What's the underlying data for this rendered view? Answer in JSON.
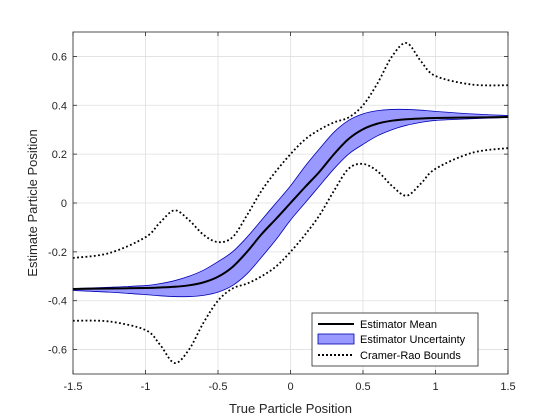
{
  "chart_data": {
    "type": "line",
    "title": "",
    "xlabel": "True Particle Position",
    "ylabel": "Estimate Particle Position",
    "xlim": [
      -1.5,
      1.5
    ],
    "ylim": [
      -0.7,
      0.7
    ],
    "xticks": [
      -1.5,
      -1,
      -0.5,
      0,
      0.5,
      1,
      1.5
    ],
    "xtick_labels": [
      "-1.5",
      "-1",
      "-0.5",
      "0",
      "0.5",
      "1",
      "1.5"
    ],
    "yticks": [
      -0.6,
      -0.4,
      -0.2,
      0,
      0.2,
      0.4,
      0.6
    ],
    "ytick_labels": [
      "-0.6",
      "-0.4",
      "-0.2",
      "0",
      "0.2",
      "0.4",
      "0.6"
    ],
    "grid": true,
    "legend_position": "bottom-right",
    "x": [
      -1.5,
      -1.25,
      -1.0,
      -0.9,
      -0.8,
      -0.7,
      -0.6,
      -0.5,
      -0.4,
      -0.3,
      -0.2,
      -0.1,
      0.0,
      0.1,
      0.2,
      0.3,
      0.4,
      0.5,
      0.6,
      0.7,
      0.8,
      0.9,
      1.0,
      1.25,
      1.5
    ],
    "series": [
      {
        "name": "Estimator Mean",
        "style": "solid",
        "color": "#000000",
        "values": [
          -0.352,
          -0.35,
          -0.348,
          -0.346,
          -0.343,
          -0.337,
          -0.325,
          -0.302,
          -0.262,
          -0.2,
          -0.128,
          -0.065,
          0.0,
          0.065,
          0.128,
          0.2,
          0.262,
          0.302,
          0.325,
          0.337,
          0.343,
          0.346,
          0.348,
          0.35,
          0.352
        ]
      },
      {
        "name": "Estimator Uncertainty",
        "style": "band",
        "color": "#9999ff",
        "lower": [
          -0.358,
          -0.365,
          -0.375,
          -0.38,
          -0.383,
          -0.383,
          -0.378,
          -0.365,
          -0.338,
          -0.29,
          -0.222,
          -0.15,
          -0.07,
          0.0,
          0.07,
          0.14,
          0.2,
          0.24,
          0.275,
          0.3,
          0.318,
          0.33,
          0.338,
          0.345,
          0.35
        ],
        "upper": [
          -0.35,
          -0.345,
          -0.338,
          -0.33,
          -0.318,
          -0.3,
          -0.275,
          -0.24,
          -0.2,
          -0.14,
          -0.07,
          0.0,
          0.07,
          0.15,
          0.222,
          0.29,
          0.338,
          0.365,
          0.378,
          0.383,
          0.383,
          0.38,
          0.375,
          0.365,
          0.358
        ]
      },
      {
        "name": "Cramer-Rao Bounds",
        "style": "dotted",
        "color": "#000000",
        "upper_bound": [
          -0.225,
          -0.205,
          -0.14,
          -0.08,
          -0.03,
          -0.07,
          -0.13,
          -0.16,
          -0.14,
          -0.05,
          0.05,
          0.13,
          0.2,
          0.26,
          0.3,
          0.33,
          0.35,
          0.4,
          0.49,
          0.6,
          0.655,
          0.58,
          0.52,
          0.485,
          0.482
        ],
        "lower_bound": [
          -0.482,
          -0.485,
          -0.52,
          -0.58,
          -0.655,
          -0.6,
          -0.49,
          -0.4,
          -0.35,
          -0.33,
          -0.3,
          -0.26,
          -0.2,
          -0.13,
          -0.05,
          0.05,
          0.14,
          0.16,
          0.13,
          0.07,
          0.03,
          0.08,
          0.14,
          0.205,
          0.225
        ]
      }
    ]
  }
}
